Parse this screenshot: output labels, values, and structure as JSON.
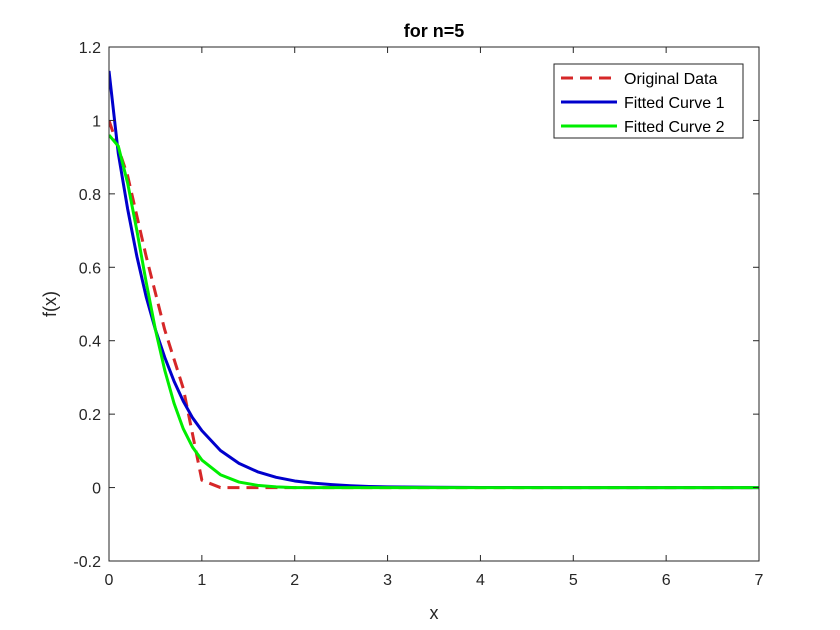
{
  "chart_data": {
    "type": "line",
    "title": "for n=5",
    "xlabel": "x",
    "ylabel": "f(x)",
    "xlim": [
      0,
      7
    ],
    "ylim": [
      -0.2,
      1.2
    ],
    "xticks": [
      0,
      1,
      2,
      3,
      4,
      5,
      6,
      7
    ],
    "yticks": [
      -0.2,
      0,
      0.2,
      0.4,
      0.6,
      0.8,
      1,
      1.2
    ],
    "xtick_labels": [
      "0",
      "1",
      "2",
      "3",
      "4",
      "5",
      "6",
      "7"
    ],
    "ytick_labels": [
      "-0.2",
      "0",
      "0.2",
      "0.4",
      "0.6",
      "0.8",
      "1",
      "1.2"
    ],
    "grid": false,
    "legend_position": "top-right",
    "series": [
      {
        "name": "Original Data",
        "color": "#d62728",
        "style": "dashed",
        "x": [
          0,
          0.2,
          0.4,
          0.6,
          0.8,
          1.0,
          1.2,
          1.4,
          1.6,
          1.8,
          2.0,
          2.5,
          3.0,
          4.0,
          5.0,
          6.0,
          7.0
        ],
        "y": [
          1.0,
          0.85,
          0.63,
          0.43,
          0.27,
          0.02,
          0.0,
          0.0,
          0.0,
          0.0,
          0.0,
          0.0,
          0.0,
          0.0,
          0.0,
          0.0,
          0.0
        ]
      },
      {
        "name": "Fitted Curve 1",
        "color": "#0000cc",
        "style": "solid",
        "x": [
          0,
          0.1,
          0.2,
          0.3,
          0.4,
          0.5,
          0.6,
          0.7,
          0.8,
          0.9,
          1.0,
          1.2,
          1.4,
          1.6,
          1.8,
          2.0,
          2.2,
          2.4,
          2.6,
          2.8,
          3.0,
          3.5,
          4.0,
          5.0,
          6.0,
          7.0
        ],
        "y": [
          1.135,
          0.91,
          0.76,
          0.63,
          0.52,
          0.43,
          0.355,
          0.29,
          0.235,
          0.19,
          0.155,
          0.101,
          0.066,
          0.043,
          0.028,
          0.018,
          0.012,
          0.008,
          0.005,
          0.003,
          0.002,
          0.001,
          0.0003,
          0.0,
          0.0,
          0.0
        ]
      },
      {
        "name": "Fitted Curve 2",
        "color": "#00ee00",
        "style": "solid",
        "x": [
          0,
          0.1,
          0.2,
          0.3,
          0.4,
          0.5,
          0.6,
          0.7,
          0.8,
          0.9,
          1.0,
          1.2,
          1.4,
          1.6,
          1.8,
          2.0,
          2.4,
          3.0,
          4.0,
          5.0,
          6.0,
          7.0
        ],
        "y": [
          0.96,
          0.93,
          0.83,
          0.7,
          0.56,
          0.43,
          0.32,
          0.23,
          0.16,
          0.11,
          0.075,
          0.035,
          0.015,
          0.006,
          0.002,
          0.0,
          0.0,
          0.0,
          0.0,
          0.0,
          0.0,
          0.0
        ]
      }
    ]
  }
}
